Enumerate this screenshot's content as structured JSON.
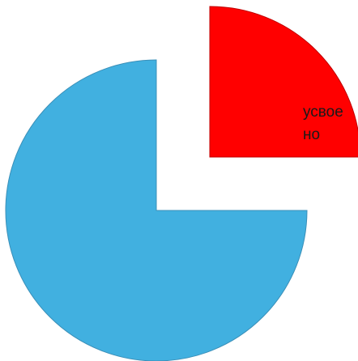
{
  "chart_data": {
    "type": "pie",
    "title": "",
    "exploded_slice_index": 1,
    "slices": [
      {
        "label": "",
        "value": 75,
        "color": "#41b0e0",
        "stroke": "#3a8fb8"
      },
      {
        "label": "усвоено",
        "label_lines": [
          "усвое",
          "но"
        ],
        "value": 25,
        "color": "#ff0000",
        "stroke": "#c00000"
      }
    ]
  }
}
